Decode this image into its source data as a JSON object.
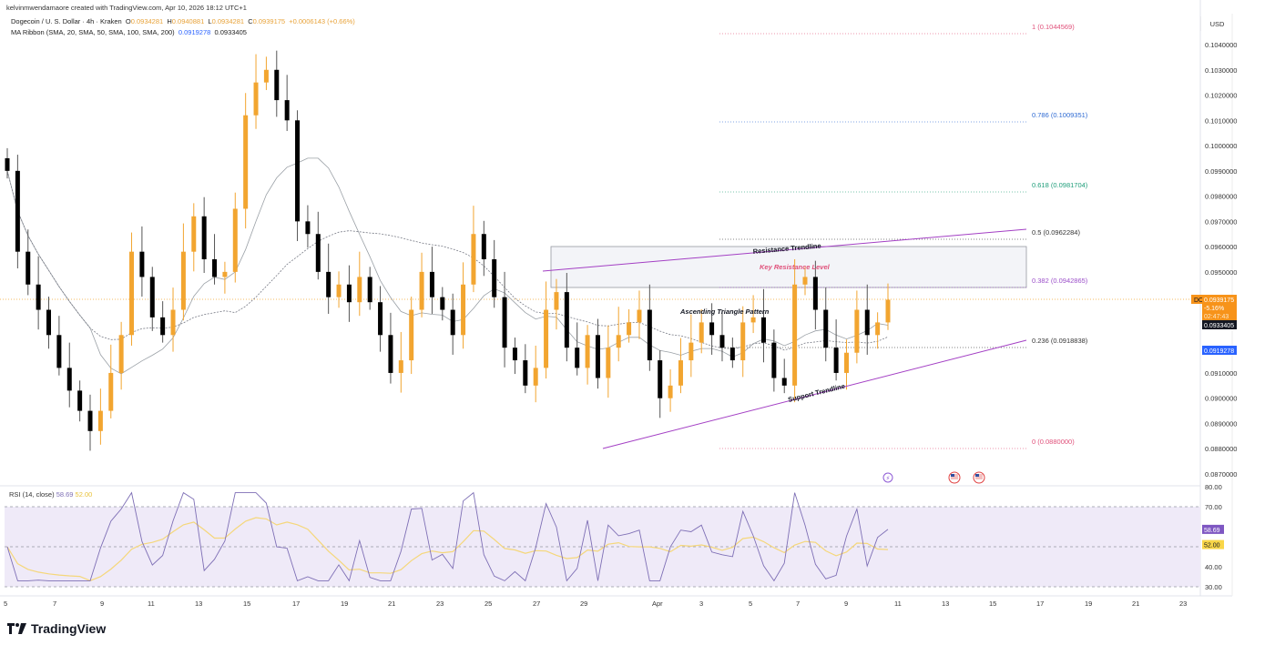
{
  "credit": "kelvinmwendamaore created with TradingView.com, Apr 10, 2026 18:12 UTC+1",
  "legend": {
    "symbol_line": "Dogecoin / U. S. Dollar · 4h · Kraken",
    "open_label": "O",
    "open": "0.0934281",
    "high_label": "H",
    "high": "0.0940881",
    "low_label": "L",
    "low": "0.0934281",
    "close_label": "C",
    "close": "0.0939175",
    "change": "+0.0006143 (+0.66%)",
    "ma_line": "MA Ribbon (SMA, 20, SMA, 50, SMA, 100, SMA, 200)",
    "ma_val1": "0.0919278",
    "ma_val2": "0.0933405"
  },
  "price_axis": {
    "currency": "USD",
    "ticks": [
      "0.1040000",
      "0.1030000",
      "0.1020000",
      "0.1010000",
      "0.1000000",
      "0.0990000",
      "0.0980000",
      "0.0970000",
      "0.0960000",
      "0.0950000",
      "0.0910000",
      "0.0900000",
      "0.0890000",
      "0.0880000",
      "0.0870000"
    ],
    "symbol_tag": "DOGEUSD",
    "last_price": "0.0939175",
    "change_pct": "-5.16%",
    "countdown": "02:47:43",
    "ma2_tag": "0.0933405",
    "ma1_tag": "0.0919278"
  },
  "time_axis": {
    "labels": [
      "5",
      "7",
      "9",
      "11",
      "13",
      "15",
      "17",
      "19",
      "21",
      "23",
      "25",
      "27",
      "29",
      "Apr",
      "3",
      "5",
      "7",
      "9",
      "11",
      "13",
      "15",
      "17",
      "19",
      "21",
      "23"
    ]
  },
  "rsi": {
    "label": "RSI (14, close)",
    "value": "58.69",
    "ma_value": "52.00",
    "ticks": [
      "80.00",
      "70.00",
      "40.00",
      "30.00"
    ]
  },
  "annotations": {
    "resistance_trendline": "Resistance Trendline",
    "key_resistance": "Key Resistance Level",
    "triangle": "Ascending Triangle Pattern",
    "support_trendline": "Support Trendline"
  },
  "fib_levels": [
    {
      "ratio": "1",
      "price": "0.1044569",
      "label": "1 (0.1044569)",
      "color": "#e0507a"
    },
    {
      "ratio": "0.786",
      "price": "0.1009351",
      "label": "0.786 (0.1009351)",
      "color": "#2f6bd3"
    },
    {
      "ratio": "0.618",
      "price": "0.0981704",
      "label": "0.618 (0.0981704)",
      "color": "#1f9e7a"
    },
    {
      "ratio": "0.5",
      "price": "0.0962284",
      "label": "0.5 (0.0962284)",
      "color": "#333333"
    },
    {
      "ratio": "0.382",
      "price": "0.0942865",
      "label": "0.382 (0.0942865)",
      "color": "#9b4fc9"
    },
    {
      "ratio": "0.236",
      "price": "0.0918838",
      "label": "0.236 (0.0918838)",
      "color": "#333333"
    },
    {
      "ratio": "0",
      "price": "0.0880000",
      "label": "0 (0.0880000)",
      "color": "#e0507a"
    }
  ],
  "colors": {
    "up": "#f2a530",
    "down": "#000000",
    "ma1": "#9aa0a6",
    "ma2": "#787b86",
    "trend": "#a33fc4",
    "rsi_line": "#7e6fb5",
    "rsi_ma": "#f5d77a",
    "rsi_band": "#efeaf8",
    "last_tag": "#f7931a",
    "ma1_tag": "#2962ff",
    "rsi_tag": "#7e57c2",
    "rsi_ma_tag": "#f9d648"
  },
  "brand": "TradingView",
  "chart_data": {
    "type": "candlestick",
    "title": "Dogecoin / U. S. Dollar · 4h · Kraken",
    "xlabel": "",
    "ylabel": "USD",
    "ylim": [
      0.0865,
      0.1052
    ],
    "x_ticks": [
      "5",
      "7",
      "9",
      "11",
      "13",
      "15",
      "17",
      "19",
      "21",
      "23",
      "25",
      "27",
      "29",
      "Apr",
      "3",
      "5",
      "7",
      "9",
      "11",
      "13",
      "15",
      "17",
      "19",
      "21",
      "23"
    ],
    "path_close": [
      0.099,
      0.0958,
      0.0945,
      0.0935,
      0.0925,
      0.0912,
      0.0903,
      0.0895,
      0.0887,
      0.0895,
      0.091,
      0.0925,
      0.0958,
      0.0948,
      0.0932,
      0.0925,
      0.0935,
      0.0958,
      0.0972,
      0.0955,
      0.0948,
      0.095,
      0.0975,
      0.1012,
      0.1025,
      0.103,
      0.1018,
      0.101,
      0.097,
      0.0965,
      0.095,
      0.094,
      0.0945,
      0.0938,
      0.0948,
      0.0938,
      0.0925,
      0.091,
      0.0915,
      0.0935,
      0.095,
      0.094,
      0.0935,
      0.0925,
      0.0945,
      0.0965,
      0.0955,
      0.094,
      0.092,
      0.0915,
      0.0905,
      0.0912,
      0.0935,
      0.0942,
      0.092,
      0.0912,
      0.0925,
      0.0908,
      0.092,
      0.0925,
      0.093,
      0.0935,
      0.0915,
      0.09,
      0.0905,
      0.0915,
      0.0922,
      0.093,
      0.0925,
      0.092,
      0.0915,
      0.093,
      0.0932,
      0.0922,
      0.0908,
      0.0905,
      0.0945,
      0.0948,
      0.0935,
      0.092,
      0.091,
      0.0918,
      0.0935,
      0.0925,
      0.093,
      0.0939
    ],
    "ma_ribbon": {
      "sma20": "0.0919278",
      "sma50": "0.0933405"
    },
    "fib_retracement": [
      {
        "level": 1,
        "price": 0.1044569
      },
      {
        "level": 0.786,
        "price": 0.1009351
      },
      {
        "level": 0.618,
        "price": 0.0981704
      },
      {
        "level": 0.5,
        "price": 0.0962284
      },
      {
        "level": 0.382,
        "price": 0.0942865
      },
      {
        "level": 0.236,
        "price": 0.0918838
      },
      {
        "level": 0,
        "price": 0.088
      }
    ],
    "trendlines": {
      "resistance": [
        [
          596,
          298
        ],
        [
          1127,
          252
        ]
      ],
      "support": [
        [
          662,
          493
        ],
        [
          1127,
          374
        ]
      ]
    },
    "resistance_zone": {
      "top": 0.096,
      "bottom": 0.0945
    },
    "rsi": {
      "period": 14,
      "value": 58.69,
      "ma": 52.0,
      "range": [
        30,
        80
      ],
      "bands": [
        30,
        70
      ]
    },
    "annotations": [
      "Resistance Trendline",
      "Key Resistance Level",
      "Ascending Triangle Pattern",
      "Support Trendline"
    ]
  }
}
